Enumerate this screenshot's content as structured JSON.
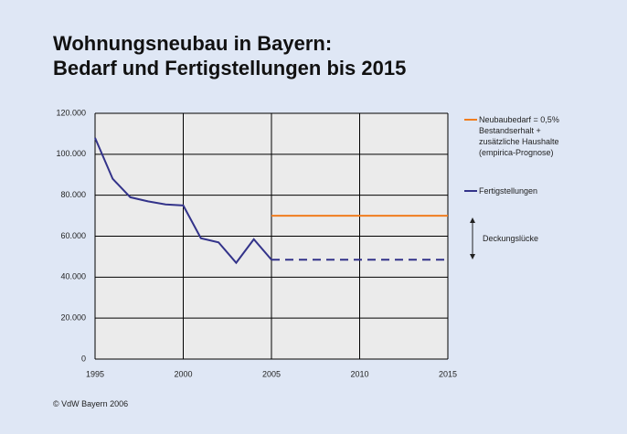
{
  "chart_data": {
    "type": "line",
    "title": "Wohnungsneubau in Bayern:\nBedarf und Fertigstellungen bis 2015",
    "xlim": [
      1995,
      2015
    ],
    "xticks": [
      1995,
      2000,
      2005,
      2010,
      2015
    ],
    "ylim": [
      0,
      120000
    ],
    "yticks": [
      0,
      {
        "value": 20000,
        "label": "20.000"
      },
      {
        "value": 40000,
        "label": "40.000"
      },
      {
        "value": 60000,
        "label": "60.000"
      },
      {
        "value": 80000,
        "label": "80.000"
      },
      {
        "value": 100000,
        "label": "100.000"
      },
      {
        "value": 120000,
        "label": "120.000"
      }
    ],
    "grid": true,
    "series": [
      {
        "name": "Neubaubedarf = 0,5%\nBestandserhalt +\nzusätzliche Haushalte\n(empirica-Prognose)",
        "color": "#f07d1e",
        "x": [
          2005,
          2015
        ],
        "values": [
          70000,
          70000
        ]
      },
      {
        "name": "Fertigstellungen",
        "color": "#33338a",
        "x": [
          1995,
          1996,
          1997,
          1998,
          1999,
          2000,
          2001,
          2002,
          2003,
          2004,
          2005
        ],
        "values": [
          108000,
          88000,
          79000,
          77000,
          75500,
          75000,
          59000,
          57000,
          47000,
          58500,
          48500
        ],
        "projection": {
          "x": [
            2005,
            2015
          ],
          "values": [
            48500,
            48500
          ],
          "dashed": true
        }
      }
    ],
    "annotation": "Deckungslücke",
    "footer": "© VdW Bayern 2006"
  }
}
